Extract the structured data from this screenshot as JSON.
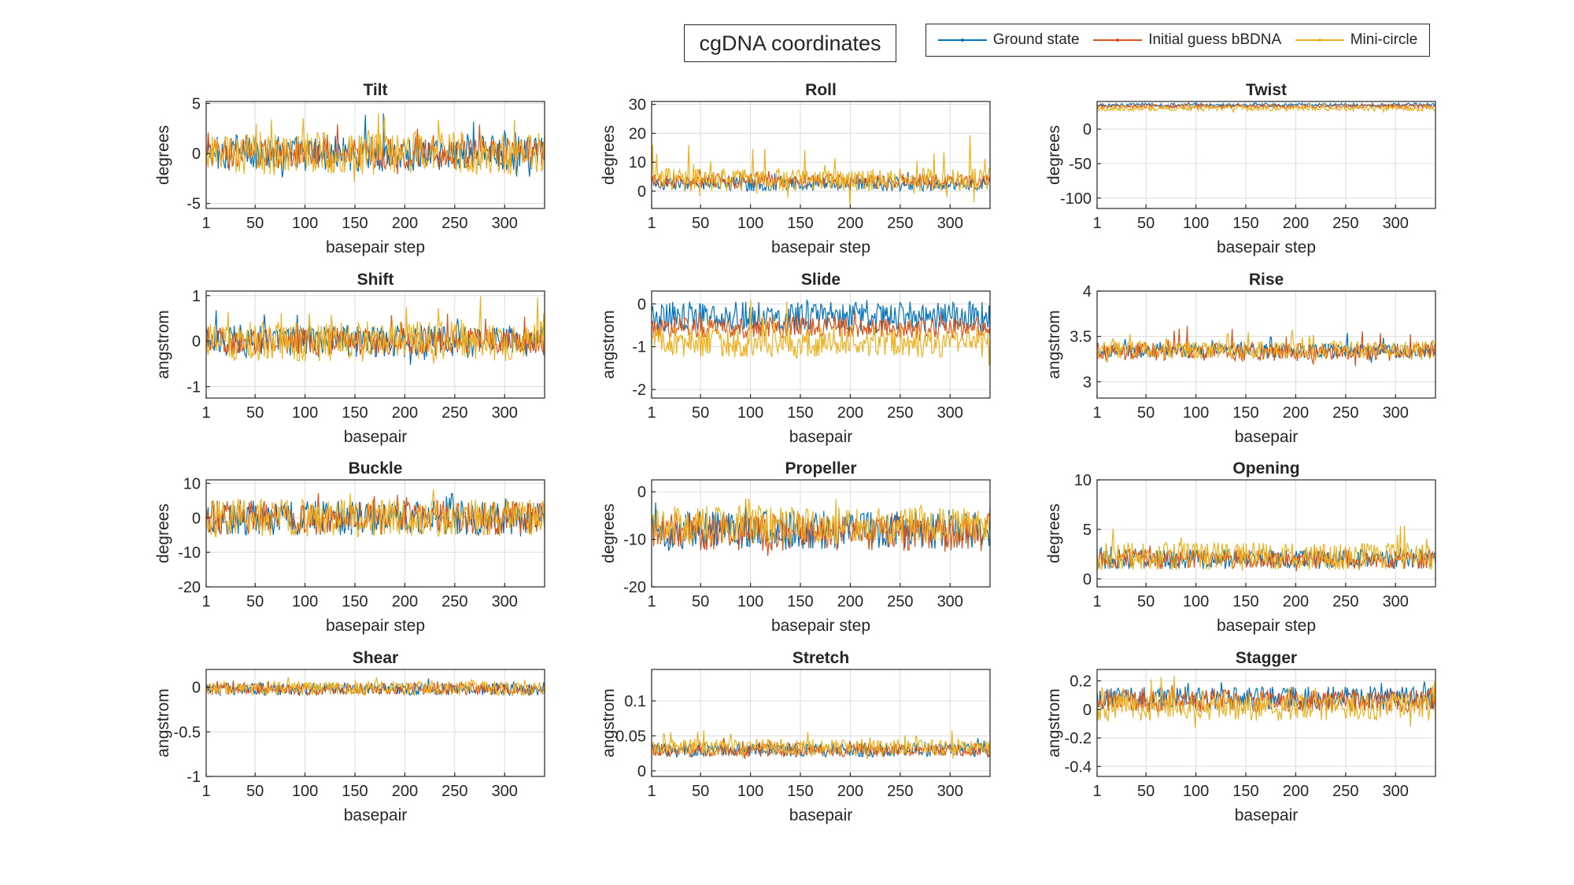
{
  "figure": {
    "title": "cgDNA coordinates",
    "legend": [
      "Ground state",
      "Initial guess bBDNA",
      "Mini-circle"
    ],
    "colors": [
      "#0072BD",
      "#D95319",
      "#EDB120"
    ]
  },
  "chart_data": [
    {
      "type": "line",
      "title": "Tilt",
      "xlabel": "basepair step",
      "ylabel": "degrees",
      "xlim": [
        1,
        340
      ],
      "ylim": [
        -5.5,
        5.2
      ],
      "xticks": [
        1,
        50,
        100,
        150,
        200,
        250,
        300
      ],
      "yticks": [
        -5,
        0,
        5
      ],
      "npoints": 339,
      "series": [
        {
          "name": "Ground state",
          "base": 0,
          "amp": 1.8,
          "spike": 3.5
        },
        {
          "name": "Initial guess bBDNA",
          "base": 0,
          "amp": 1.5,
          "spike": 3
        },
        {
          "name": "Mini-circle",
          "base": 0,
          "amp": 2.2,
          "spike": 5
        }
      ]
    },
    {
      "type": "line",
      "title": "Roll",
      "xlabel": "basepair step",
      "ylabel": "degrees",
      "xlim": [
        1,
        340
      ],
      "ylim": [
        -6,
        31
      ],
      "xticks": [
        1,
        50,
        100,
        150,
        200,
        250,
        300
      ],
      "yticks": [
        0,
        10,
        20,
        30
      ],
      "npoints": 339,
      "series": [
        {
          "name": "Ground state",
          "base": 2.5,
          "amp": 2.5,
          "spike": 3
        },
        {
          "name": "Initial guess bBDNA",
          "base": 3.5,
          "amp": 2.5,
          "spike": 3
        },
        {
          "name": "Mini-circle",
          "base": 4,
          "amp": 4,
          "spike": 20
        }
      ]
    },
    {
      "type": "line",
      "title": "Twist",
      "xlabel": "basepair step",
      "ylabel": "degrees",
      "xlim": [
        1,
        340
      ],
      "ylim": [
        -115,
        40
      ],
      "xticks": [
        1,
        50,
        100,
        150,
        200,
        250,
        300
      ],
      "yticks": [
        -100,
        -50,
        0
      ],
      "npoints": 339,
      "series": [
        {
          "name": "Ground state",
          "base": 35,
          "amp": 2.5,
          "spike": 2
        },
        {
          "name": "Initial guess bBDNA",
          "base": 33,
          "amp": 3,
          "spike": 3
        },
        {
          "name": "Mini-circle",
          "base": 30,
          "amp": 4,
          "spike": 8
        }
      ]
    },
    {
      "type": "line",
      "title": "Shift",
      "xlabel": "basepair",
      "ylabel": "angstrom",
      "xlim": [
        1,
        340
      ],
      "ylim": [
        -1.25,
        1.1
      ],
      "xticks": [
        1,
        50,
        100,
        150,
        200,
        250,
        300
      ],
      "yticks": [
        -1,
        0,
        1
      ],
      "npoints": 339,
      "series": [
        {
          "name": "Ground state",
          "base": 0,
          "amp": 0.35,
          "spike": 0.7
        },
        {
          "name": "Initial guess bBDNA",
          "base": 0,
          "amp": 0.3,
          "spike": 0.6
        },
        {
          "name": "Mini-circle",
          "base": 0,
          "amp": 0.45,
          "spike": 1.0
        }
      ]
    },
    {
      "type": "line",
      "title": "Slide",
      "xlabel": "basepair",
      "ylabel": "angstrom",
      "xlim": [
        1,
        340
      ],
      "ylim": [
        -2.2,
        0.3
      ],
      "xticks": [
        1,
        50,
        100,
        150,
        200,
        250,
        300
      ],
      "yticks": [
        -2,
        -1,
        0
      ],
      "npoints": 339,
      "series": [
        {
          "name": "Ground state",
          "base": -0.3,
          "amp": 0.35,
          "spike": 0.3
        },
        {
          "name": "Initial guess bBDNA",
          "base": -0.55,
          "amp": 0.25,
          "spike": 0.3
        },
        {
          "name": "Mini-circle",
          "base": -0.9,
          "amp": 0.35,
          "spike": 1.0
        }
      ]
    },
    {
      "type": "line",
      "title": "Rise",
      "xlabel": "basepair",
      "ylabel": "angstrom",
      "xlim": [
        1,
        340
      ],
      "ylim": [
        2.82,
        4
      ],
      "xticks": [
        1,
        50,
        100,
        150,
        200,
        250,
        300
      ],
      "yticks": [
        3,
        3.5,
        4
      ],
      "npoints": 339,
      "series": [
        {
          "name": "Ground state",
          "base": 3.34,
          "amp": 0.08,
          "spike": 0.2
        },
        {
          "name": "Initial guess bBDNA",
          "base": 3.33,
          "amp": 0.1,
          "spike": 0.35
        },
        {
          "name": "Mini-circle",
          "base": 3.35,
          "amp": 0.1,
          "spike": 0.3
        }
      ]
    },
    {
      "type": "line",
      "title": "Buckle",
      "xlabel": "basepair step",
      "ylabel": "degrees",
      "xlim": [
        1,
        340
      ],
      "ylim": [
        -20,
        11
      ],
      "xticks": [
        1,
        50,
        100,
        150,
        200,
        250,
        300
      ],
      "yticks": [
        -20,
        -10,
        0,
        10
      ],
      "npoints": 339,
      "series": [
        {
          "name": "Ground state",
          "base": 0,
          "amp": 5,
          "spike": 5
        },
        {
          "name": "Initial guess bBDNA",
          "base": 0,
          "amp": 5,
          "spike": 5
        },
        {
          "name": "Mini-circle",
          "base": 0,
          "amp": 5.5,
          "spike": 6
        }
      ]
    },
    {
      "type": "line",
      "title": "Propeller",
      "xlabel": "basepair step",
      "ylabel": "degrees",
      "xlim": [
        1,
        340
      ],
      "ylim": [
        -20,
        2.5
      ],
      "xticks": [
        1,
        50,
        100,
        150,
        200,
        250,
        300
      ],
      "yticks": [
        -20,
        -10,
        0
      ],
      "npoints": 339,
      "series": [
        {
          "name": "Ground state",
          "base": -8,
          "amp": 4,
          "spike": 4
        },
        {
          "name": "Initial guess bBDNA",
          "base": -8.5,
          "amp": 4,
          "spike": 4
        },
        {
          "name": "Mini-circle",
          "base": -7,
          "amp": 4,
          "spike": 6
        }
      ]
    },
    {
      "type": "line",
      "title": "Opening",
      "xlabel": "basepair step",
      "ylabel": "degrees",
      "xlim": [
        1,
        340
      ],
      "ylim": [
        -0.8,
        10
      ],
      "xticks": [
        1,
        50,
        100,
        150,
        200,
        250,
        300
      ],
      "yticks": [
        0,
        5,
        10
      ],
      "npoints": 339,
      "series": [
        {
          "name": "Ground state",
          "base": 2,
          "amp": 1,
          "spike": 1
        },
        {
          "name": "Initial guess bBDNA",
          "base": 2,
          "amp": 1,
          "spike": 1
        },
        {
          "name": "Mini-circle",
          "base": 2.3,
          "amp": 1.4,
          "spike": 5
        }
      ]
    },
    {
      "type": "line",
      "title": "Shear",
      "xlabel": "basepair",
      "ylabel": "angstrom",
      "xlim": [
        1,
        340
      ],
      "ylim": [
        -1,
        0.2
      ],
      "xticks": [
        1,
        50,
        100,
        150,
        200,
        250,
        300
      ],
      "yticks": [
        -1,
        -0.5,
        0
      ],
      "npoints": 339,
      "series": [
        {
          "name": "Ground state",
          "base": -0.02,
          "amp": 0.07,
          "spike": 0.08
        },
        {
          "name": "Initial guess bBDNA",
          "base": -0.02,
          "amp": 0.07,
          "spike": 0.08
        },
        {
          "name": "Mini-circle",
          "base": -0.01,
          "amp": 0.08,
          "spike": 0.1
        }
      ]
    },
    {
      "type": "line",
      "title": "Stretch",
      "xlabel": "basepair",
      "ylabel": "angstrom",
      "xlim": [
        1,
        340
      ],
      "ylim": [
        -0.008,
        0.145
      ],
      "xticks": [
        1,
        50,
        100,
        150,
        200,
        250,
        300
      ],
      "yticks": [
        0,
        0.05,
        0.1
      ],
      "npoints": 339,
      "series": [
        {
          "name": "Ground state",
          "base": 0.03,
          "amp": 0.01,
          "spike": 0.015
        },
        {
          "name": "Initial guess bBDNA",
          "base": 0.03,
          "amp": 0.01,
          "spike": 0.015
        },
        {
          "name": "Mini-circle",
          "base": 0.034,
          "amp": 0.012,
          "spike": 0.03
        }
      ]
    },
    {
      "type": "line",
      "title": "Stagger",
      "xlabel": "basepair",
      "ylabel": "angstrom",
      "xlim": [
        1,
        340
      ],
      "ylim": [
        -0.47,
        0.28
      ],
      "xticks": [
        1,
        50,
        100,
        150,
        200,
        250,
        300
      ],
      "yticks": [
        -0.4,
        -0.2,
        0,
        0.2
      ],
      "npoints": 339,
      "series": [
        {
          "name": "Ground state",
          "base": 0.08,
          "amp": 0.08,
          "spike": 0.1
        },
        {
          "name": "Initial guess bBDNA",
          "base": 0.06,
          "amp": 0.08,
          "spike": 0.1
        },
        {
          "name": "Mini-circle",
          "base": 0.02,
          "amp": 0.1,
          "spike": 0.25
        }
      ]
    }
  ]
}
